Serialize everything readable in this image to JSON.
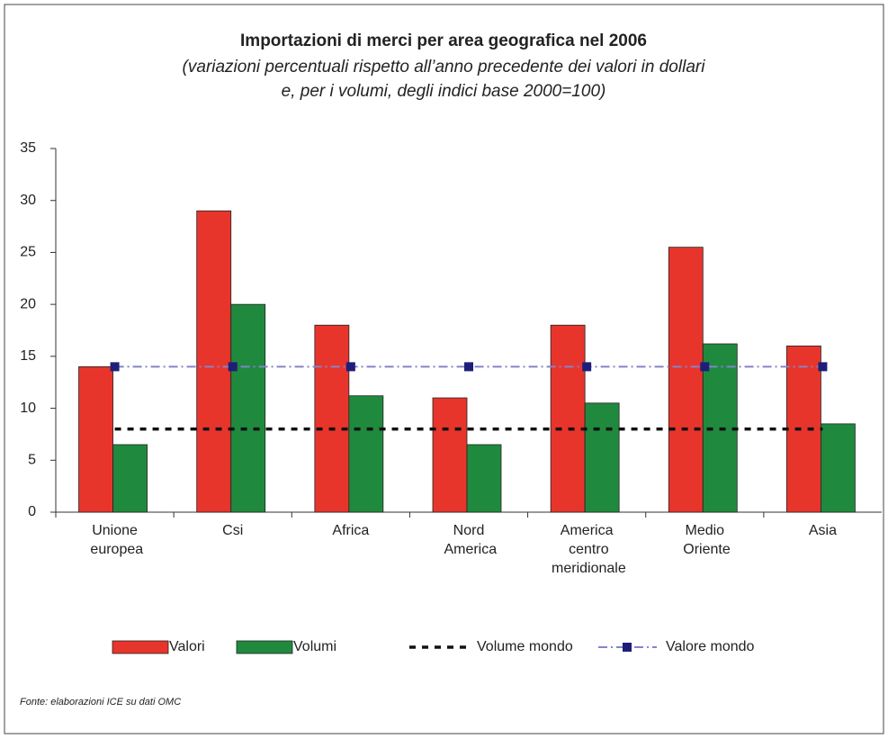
{
  "chart_data": {
    "type": "bar",
    "title": "Importazioni di merci per area geografica nel 2006",
    "subtitle": [
      "(variazioni percentuali rispetto all’anno precedente dei valori in dollari",
      "e, per i volumi, degli indici base 2000=100)"
    ],
    "categories": [
      "Unione europea",
      "Csi",
      "Africa",
      "Nord America",
      "America centro meridionale",
      "Medio Oriente",
      "Asia"
    ],
    "series": [
      {
        "name": "Valori",
        "type": "bar",
        "color": "#e8352c",
        "values": [
          14,
          29,
          18,
          11,
          18,
          25.5,
          16
        ]
      },
      {
        "name": "Volumi",
        "type": "bar",
        "color": "#1f8a3e",
        "values": [
          6.5,
          20,
          11.2,
          6.5,
          10.5,
          16.2,
          8.5
        ]
      },
      {
        "name": "Volume mondo",
        "type": "line",
        "color": "#111111",
        "values": [
          8,
          8,
          8,
          8,
          8,
          8,
          8
        ]
      },
      {
        "name": "Valore mondo",
        "type": "line",
        "color": "#8484c8",
        "marker_color": "#1e1e7a",
        "values": [
          14,
          14,
          14,
          14,
          14,
          14,
          14
        ]
      }
    ],
    "ylim": [
      0,
      35
    ],
    "yticks": [
      0,
      5,
      10,
      15,
      20,
      25,
      30,
      35
    ],
    "source": "Fonte: elaborazioni ICE su dati OMC"
  }
}
